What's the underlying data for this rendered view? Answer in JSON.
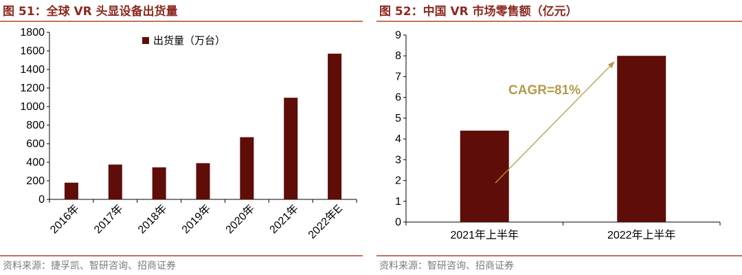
{
  "left": {
    "title": "图 51：全球 VR 头显设备出货量",
    "source": "资料来源：捷孚凯、智研咨询、招商证券"
  },
  "right": {
    "title": "图 52：中国 VR 市场零售额（亿元）",
    "source": "资料来源：智研咨询、招商证券"
  },
  "chart_data": [
    {
      "type": "bar",
      "title": "全球 VR 头显设备出货量",
      "categories": [
        "2016年",
        "2017年",
        "2018年",
        "2019年",
        "2020年",
        "2021年",
        "2022年E"
      ],
      "series": [
        {
          "name": "出货量（万台）",
          "values": [
            180,
            375,
            345,
            390,
            670,
            1095,
            1570
          ]
        }
      ],
      "ylim": [
        0,
        1800
      ],
      "yticks": [
        0,
        200,
        400,
        600,
        800,
        1000,
        1200,
        1400,
        1600,
        1800
      ],
      "legend": "top-center",
      "grid": false,
      "color": "#5e0d08"
    },
    {
      "type": "bar",
      "title": "中国 VR 市场零售额（亿元）",
      "categories": [
        "2021年上半年",
        "2022年上半年"
      ],
      "series": [
        {
          "values": [
            4.4,
            8.0
          ]
        }
      ],
      "ylim": [
        0,
        9
      ],
      "yticks": [
        0,
        1,
        2,
        3,
        4,
        5,
        6,
        7,
        8,
        9
      ],
      "annotation": "CAGR=81%",
      "annotation_color": "#b59a4a",
      "grid": false,
      "color": "#5e0d08"
    }
  ]
}
